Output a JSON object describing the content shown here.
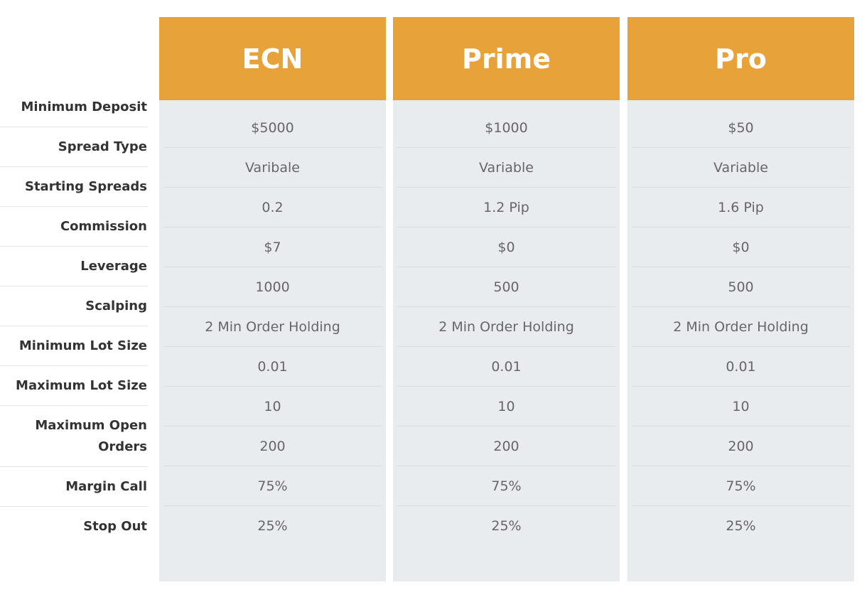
{
  "row_labels": [
    "Minimum Deposit",
    "Spread Type",
    "Starting Spreads",
    "Commission",
    "Leverage",
    "Scalping",
    "Minimum Lot Size",
    "Maximum Lot Size",
    "Maximum Open Orders",
    "Margin Call",
    "Stop Out"
  ],
  "columns": [
    {
      "name": "ECN",
      "values": [
        "$5000",
        "Varibale",
        "0.2",
        "$7",
        "1000",
        "2 Min Order Holding",
        "0.01",
        "10",
        "200",
        "75%",
        "25%"
      ]
    },
    {
      "name": "Prime",
      "values": [
        "$1000",
        "Variable",
        "1.2 Pip",
        "$0",
        "500",
        "2 Min Order Holding",
        "0.01",
        "10",
        "200",
        "75%",
        "25%"
      ]
    },
    {
      "name": "Pro",
      "values": [
        "$50",
        "Variable",
        "1.6 Pip",
        "$0",
        "500",
        "2 Min Order Holding",
        "0.01",
        "10",
        "200",
        "75%",
        "25%"
      ]
    }
  ]
}
